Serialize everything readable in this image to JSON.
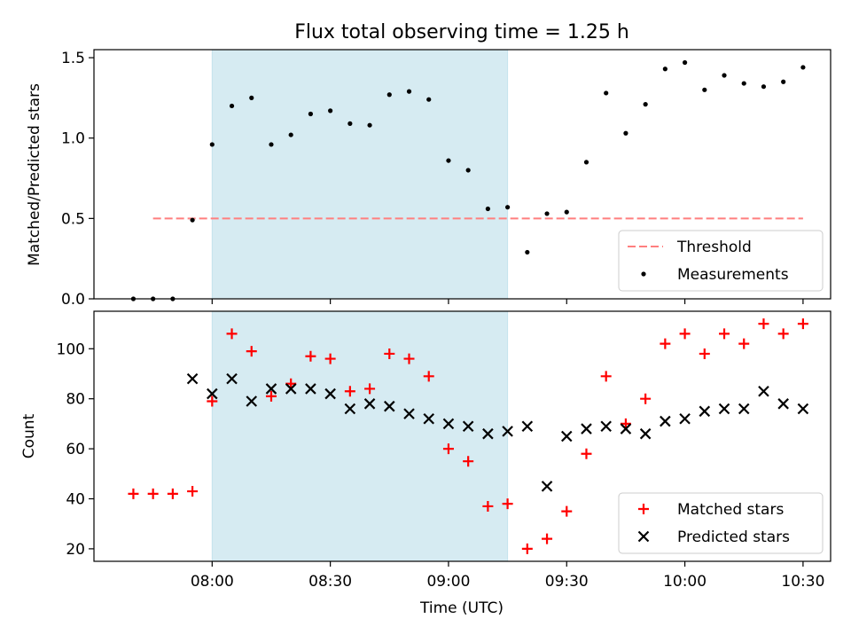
{
  "chart_data": [
    {
      "type": "scatter",
      "title": "Flux total observing time = 1.25 h",
      "ylabel": "Matched/Predicted stars",
      "ylim": [
        0,
        1.55
      ],
      "yticks": [
        0.0,
        0.5,
        1.0,
        1.5
      ],
      "ytick_labels": [
        "0.0",
        "0.5",
        "1.0",
        "1.5"
      ],
      "xlim_minutes": [
        -30,
        157
      ],
      "shaded_span": [
        "08:00",
        "09:15"
      ],
      "shaded_color": "#add8e6",
      "grid": false,
      "legend_position": "lower-right",
      "series": [
        {
          "name": "Threshold",
          "kind": "dashed-line",
          "color": "#ff7f7f",
          "x": [
            "07:45",
            "10:30"
          ],
          "y": [
            0.5,
            0.5
          ]
        },
        {
          "name": "Measurements",
          "kind": "dot",
          "color": "#000000",
          "x": [
            "07:40",
            "07:45",
            "07:50",
            "07:55",
            "08:00",
            "08:05",
            "08:10",
            "08:15",
            "08:20",
            "08:25",
            "08:30",
            "08:35",
            "08:40",
            "08:45",
            "08:50",
            "08:55",
            "09:00",
            "09:05",
            "09:10",
            "09:15",
            "09:20",
            "09:25",
            "09:30",
            "09:35",
            "09:40",
            "09:45",
            "09:50",
            "09:55",
            "10:00",
            "10:05",
            "10:10",
            "10:15",
            "10:20",
            "10:25",
            "10:30"
          ],
          "y": [
            0.0,
            0.0,
            0.0,
            0.49,
            0.96,
            1.2,
            1.25,
            0.96,
            1.02,
            1.15,
            1.17,
            1.09,
            1.08,
            1.27,
            1.29,
            1.24,
            0.86,
            0.8,
            0.56,
            0.57,
            0.29,
            0.53,
            0.54,
            0.85,
            1.28,
            1.03,
            1.21,
            1.43,
            1.47,
            1.3,
            1.39,
            1.34,
            1.32,
            1.35,
            1.44
          ]
        }
      ]
    },
    {
      "type": "scatter",
      "xlabel": "Time (UTC)",
      "ylabel": "Count",
      "ylim": [
        15,
        115
      ],
      "yticks": [
        20,
        40,
        60,
        80,
        100
      ],
      "ytick_labels": [
        "20",
        "40",
        "60",
        "80",
        "100"
      ],
      "xlim_minutes": [
        -30,
        157
      ],
      "xticks": [
        "08:00",
        "08:30",
        "09:00",
        "09:30",
        "10:00",
        "10:30"
      ],
      "shaded_span": [
        "08:00",
        "09:15"
      ],
      "shaded_color": "#add8e6",
      "grid": false,
      "legend_position": "lower-right",
      "series": [
        {
          "name": "Matched stars",
          "kind": "plus",
          "color": "#ff0000",
          "x": [
            "07:40",
            "07:45",
            "07:50",
            "07:55",
            "08:00",
            "08:05",
            "08:10",
            "08:15",
            "08:20",
            "08:25",
            "08:30",
            "08:35",
            "08:40",
            "08:45",
            "08:50",
            "08:55",
            "09:00",
            "09:05",
            "09:10",
            "09:15",
            "09:20",
            "09:25",
            "09:30",
            "09:35",
            "09:40",
            "09:45",
            "09:50",
            "09:55",
            "10:00",
            "10:05",
            "10:10",
            "10:15",
            "10:20",
            "10:25",
            "10:30"
          ],
          "y": [
            42,
            42,
            42,
            43,
            79,
            106,
            99,
            81,
            86,
            97,
            96,
            83,
            84,
            98,
            96,
            89,
            60,
            55,
            37,
            38,
            20,
            24,
            35,
            58,
            89,
            70,
            80,
            102,
            106,
            98,
            106,
            102,
            110,
            106,
            110
          ]
        },
        {
          "name": "Predicted stars",
          "kind": "cross",
          "color": "#000000",
          "x": [
            "07:55",
            "08:00",
            "08:05",
            "08:10",
            "08:15",
            "08:20",
            "08:25",
            "08:30",
            "08:35",
            "08:40",
            "08:45",
            "08:50",
            "08:55",
            "09:00",
            "09:05",
            "09:10",
            "09:15",
            "09:20",
            "09:25",
            "09:30",
            "09:35",
            "09:40",
            "09:45",
            "09:50",
            "09:55",
            "10:00",
            "10:05",
            "10:10",
            "10:15",
            "10:20",
            "10:25",
            "10:30"
          ],
          "y": [
            88,
            82,
            88,
            79,
            84,
            84,
            84,
            82,
            76,
            78,
            77,
            74,
            72,
            70,
            69,
            66,
            67,
            69,
            45,
            65,
            68,
            69,
            68,
            66,
            71,
            72,
            75,
            76,
            76,
            83,
            78,
            76
          ]
        }
      ]
    }
  ]
}
